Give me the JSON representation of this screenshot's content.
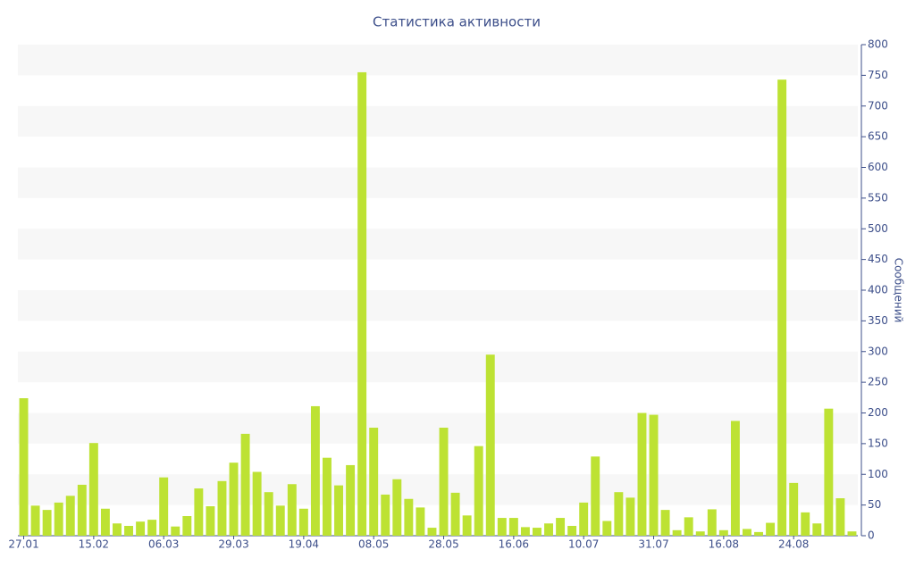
{
  "chart_data": {
    "type": "bar",
    "title": "Статистика активности",
    "y_label": "Сообщений",
    "categories": [
      "27.01",
      null,
      null,
      null,
      null,
      null,
      "15.02",
      null,
      null,
      null,
      null,
      null,
      "06.03",
      null,
      null,
      null,
      null,
      null,
      "29.03",
      null,
      null,
      null,
      null,
      null,
      "19.04",
      null,
      null,
      null,
      null,
      null,
      "08.05",
      null,
      null,
      null,
      null,
      null,
      "28.05",
      null,
      null,
      null,
      null,
      null,
      "16.06",
      null,
      null,
      null,
      null,
      null,
      "10.07",
      null,
      null,
      null,
      null,
      null,
      "31.07",
      null,
      null,
      null,
      null,
      null,
      "16.08",
      null,
      null,
      null,
      null,
      null,
      "24.08",
      null,
      null,
      null,
      null,
      null
    ],
    "values": [
      224,
      49,
      42,
      54,
      65,
      83,
      151,
      44,
      20,
      16,
      23,
      26,
      95,
      15,
      32,
      77,
      48,
      89,
      119,
      166,
      104,
      71,
      49,
      84,
      44,
      211,
      127,
      82,
      115,
      755,
      176,
      67,
      92,
      60,
      46,
      13,
      176,
      70,
      33,
      146,
      295,
      29,
      29,
      14,
      13,
      20,
      29,
      16,
      54,
      129,
      24,
      71,
      62,
      200,
      197,
      42,
      9,
      30,
      7,
      43,
      9,
      187,
      11,
      6,
      21,
      743,
      86,
      38,
      20,
      207,
      61,
      7
    ],
    "color": "#bde233",
    "ylim": [
      0,
      800
    ],
    "yticks": [
      0,
      50,
      100,
      150,
      200,
      250,
      300,
      350,
      400,
      450,
      500,
      550,
      600,
      650,
      700,
      750,
      800
    ],
    "y_axis_side": "right",
    "grid": "bands"
  }
}
